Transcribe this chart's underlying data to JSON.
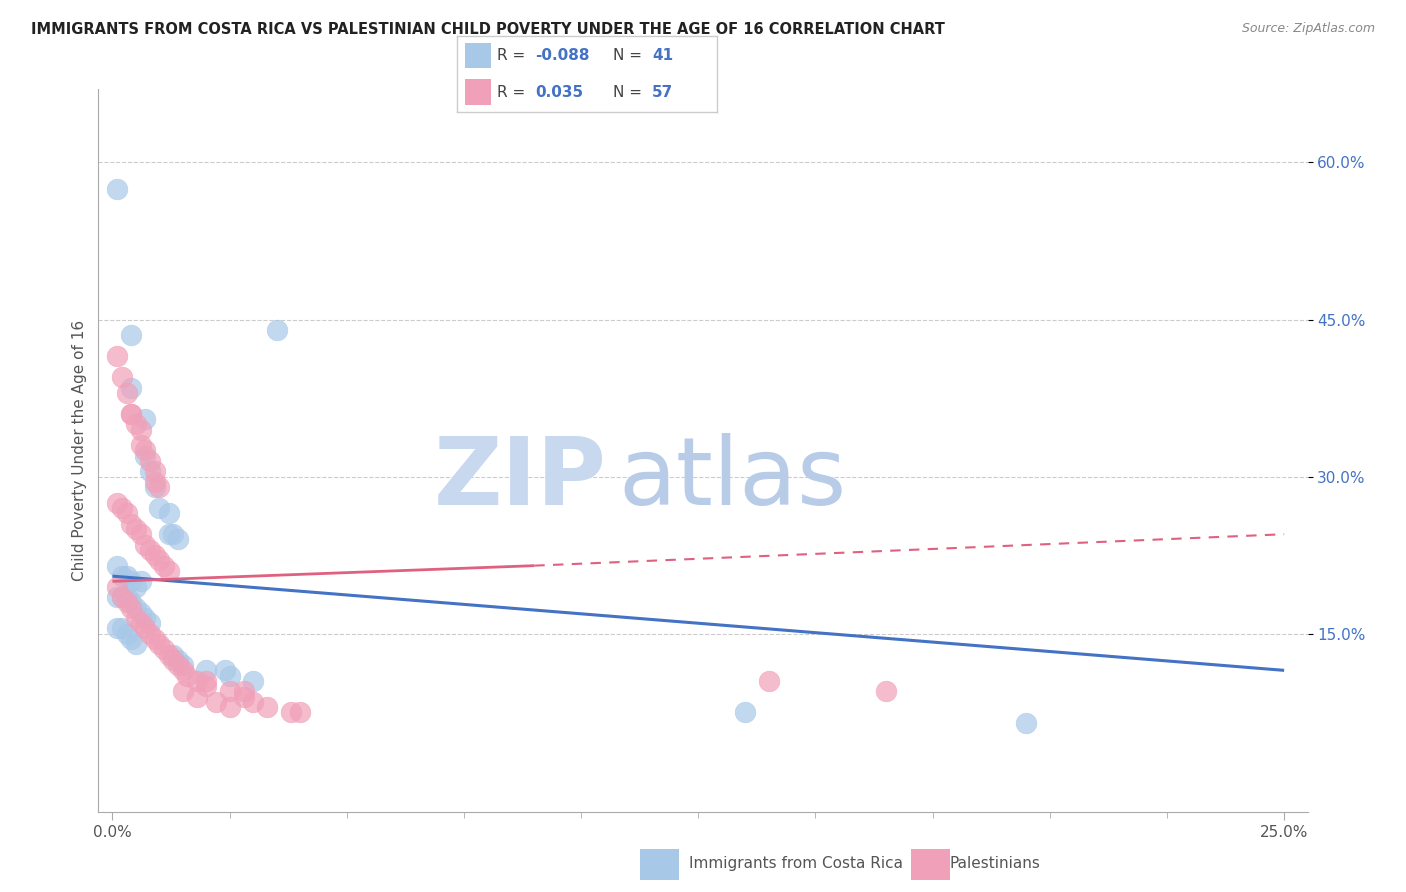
{
  "title": "IMMIGRANTS FROM COSTA RICA VS PALESTINIAN CHILD POVERTY UNDER THE AGE OF 16 CORRELATION CHART",
  "source": "Source: ZipAtlas.com",
  "ylabel": "Child Poverty Under the Age of 16",
  "color_blue": "#a8c8e8",
  "color_pink": "#f0a0b8",
  "color_blue_line": "#4472c4",
  "color_pink_line": "#e06080",
  "watermark_zip": "#c8d8ec",
  "watermark_atlas": "#b0c8e4",
  "grid_color": "#cccccc",
  "background_color": "#ffffff",
  "blue_points": [
    [
      0.001,
      0.575
    ],
    [
      0.004,
      0.435
    ],
    [
      0.004,
      0.385
    ],
    [
      0.007,
      0.355
    ],
    [
      0.007,
      0.32
    ],
    [
      0.008,
      0.305
    ],
    [
      0.009,
      0.29
    ],
    [
      0.01,
      0.27
    ],
    [
      0.012,
      0.265
    ],
    [
      0.012,
      0.245
    ],
    [
      0.013,
      0.245
    ],
    [
      0.014,
      0.24
    ],
    [
      0.001,
      0.215
    ],
    [
      0.002,
      0.205
    ],
    [
      0.003,
      0.205
    ],
    [
      0.004,
      0.2
    ],
    [
      0.005,
      0.195
    ],
    [
      0.006,
      0.2
    ],
    [
      0.001,
      0.185
    ],
    [
      0.002,
      0.185
    ],
    [
      0.003,
      0.185
    ],
    [
      0.004,
      0.18
    ],
    [
      0.005,
      0.175
    ],
    [
      0.006,
      0.17
    ],
    [
      0.007,
      0.165
    ],
    [
      0.008,
      0.16
    ],
    [
      0.001,
      0.155
    ],
    [
      0.002,
      0.155
    ],
    [
      0.003,
      0.15
    ],
    [
      0.004,
      0.145
    ],
    [
      0.005,
      0.14
    ],
    [
      0.013,
      0.13
    ],
    [
      0.014,
      0.125
    ],
    [
      0.015,
      0.12
    ],
    [
      0.02,
      0.115
    ],
    [
      0.024,
      0.115
    ],
    [
      0.025,
      0.11
    ],
    [
      0.03,
      0.105
    ],
    [
      0.035,
      0.44
    ],
    [
      0.135,
      0.075
    ],
    [
      0.195,
      0.065
    ]
  ],
  "pink_points": [
    [
      0.001,
      0.415
    ],
    [
      0.002,
      0.395
    ],
    [
      0.003,
      0.38
    ],
    [
      0.004,
      0.36
    ],
    [
      0.004,
      0.36
    ],
    [
      0.005,
      0.35
    ],
    [
      0.006,
      0.345
    ],
    [
      0.006,
      0.33
    ],
    [
      0.007,
      0.325
    ],
    [
      0.008,
      0.315
    ],
    [
      0.009,
      0.305
    ],
    [
      0.009,
      0.295
    ],
    [
      0.01,
      0.29
    ],
    [
      0.001,
      0.275
    ],
    [
      0.002,
      0.27
    ],
    [
      0.003,
      0.265
    ],
    [
      0.004,
      0.255
    ],
    [
      0.005,
      0.25
    ],
    [
      0.006,
      0.245
    ],
    [
      0.007,
      0.235
    ],
    [
      0.008,
      0.23
    ],
    [
      0.009,
      0.225
    ],
    [
      0.01,
      0.22
    ],
    [
      0.011,
      0.215
    ],
    [
      0.012,
      0.21
    ],
    [
      0.001,
      0.195
    ],
    [
      0.002,
      0.185
    ],
    [
      0.003,
      0.18
    ],
    [
      0.004,
      0.175
    ],
    [
      0.005,
      0.165
    ],
    [
      0.006,
      0.16
    ],
    [
      0.007,
      0.155
    ],
    [
      0.008,
      0.15
    ],
    [
      0.009,
      0.145
    ],
    [
      0.01,
      0.14
    ],
    [
      0.011,
      0.135
    ],
    [
      0.012,
      0.13
    ],
    [
      0.013,
      0.125
    ],
    [
      0.014,
      0.12
    ],
    [
      0.015,
      0.115
    ],
    [
      0.016,
      0.11
    ],
    [
      0.018,
      0.105
    ],
    [
      0.02,
      0.1
    ],
    [
      0.025,
      0.095
    ],
    [
      0.028,
      0.09
    ],
    [
      0.03,
      0.085
    ],
    [
      0.033,
      0.08
    ],
    [
      0.038,
      0.075
    ],
    [
      0.02,
      0.105
    ],
    [
      0.028,
      0.095
    ],
    [
      0.14,
      0.105
    ],
    [
      0.165,
      0.095
    ],
    [
      0.015,
      0.095
    ],
    [
      0.018,
      0.09
    ],
    [
      0.022,
      0.085
    ],
    [
      0.025,
      0.08
    ],
    [
      0.04,
      0.075
    ]
  ],
  "blue_trend": [
    0.0,
    0.25,
    0.205,
    0.115
  ],
  "pink_trend_solid": [
    0.0,
    0.09,
    0.2,
    0.215
  ],
  "pink_trend_dashed": [
    0.09,
    0.25,
    0.215,
    0.245
  ],
  "yticks": [
    0.15,
    0.3,
    0.45,
    0.6
  ],
  "xticks": [
    0.0,
    0.25
  ],
  "xlim": [
    -0.003,
    0.255
  ],
  "ylim": [
    -0.02,
    0.67
  ]
}
